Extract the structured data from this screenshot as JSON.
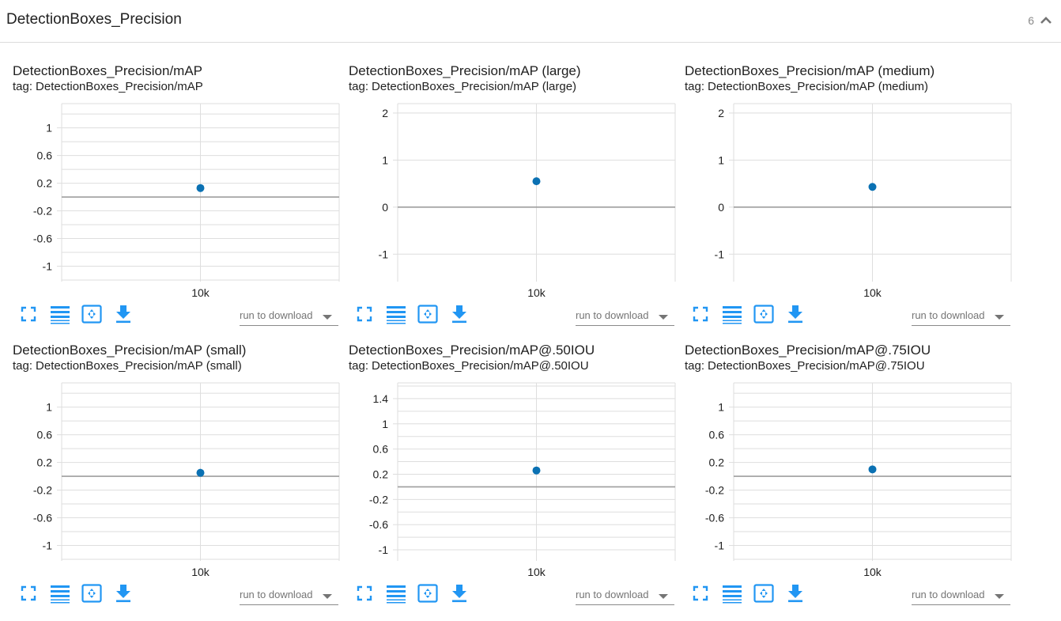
{
  "header": {
    "title": "DetectionBoxes_Precision",
    "count": "6"
  },
  "colors": {
    "accent": "#2196f3",
    "point": "#0b71b3",
    "grid": "#dedede",
    "zero_line": "#9e9e9e"
  },
  "tag_prefix": "tag:",
  "run_placeholder": "run to download",
  "cards": [
    {
      "title": "DetectionBoxes_Precision/mAP",
      "tag": "DetectionBoxes_Precision/mAP"
    },
    {
      "title": "DetectionBoxes_Precision/mAP (large)",
      "tag": "DetectionBoxes_Precision/mAP (large)"
    },
    {
      "title": "DetectionBoxes_Precision/mAP (medium)",
      "tag": "DetectionBoxes_Precision/mAP (medium)"
    },
    {
      "title": "DetectionBoxes_Precision/mAP (small)",
      "tag": "DetectionBoxes_Precision/mAP (small)"
    },
    {
      "title": "DetectionBoxes_Precision/mAP@.50IOU",
      "tag": "DetectionBoxes_Precision/mAP@.50IOU"
    },
    {
      "title": "DetectionBoxes_Precision/mAP@.75IOU",
      "tag": "DetectionBoxes_Precision/mAP@.75IOU"
    }
  ],
  "chart_data": [
    {
      "type": "scatter",
      "title": "DetectionBoxes_Precision/mAP",
      "x_tick_labels": [
        "10k"
      ],
      "ylim": [
        -1.2,
        1.35
      ],
      "y_ticks": [
        1,
        0.6,
        0.2,
        -0.2,
        -0.6,
        -1
      ],
      "y_minor_step": 0.2,
      "grid": true,
      "points": [
        {
          "x": "10k",
          "y": 0.13
        }
      ]
    },
    {
      "type": "scatter",
      "title": "DetectionBoxes_Precision/mAP (large)",
      "x_tick_labels": [
        "10k"
      ],
      "ylim": [
        -1.55,
        2.2
      ],
      "y_ticks": [
        2,
        1,
        0,
        -1
      ],
      "y_minor_step": 1,
      "grid": true,
      "points": [
        {
          "x": "10k",
          "y": 0.55
        }
      ]
    },
    {
      "type": "scatter",
      "title": "DetectionBoxes_Precision/mAP (medium)",
      "x_tick_labels": [
        "10k"
      ],
      "ylim": [
        -1.55,
        2.2
      ],
      "y_ticks": [
        2,
        1,
        0,
        -1
      ],
      "y_minor_step": 1,
      "grid": true,
      "points": [
        {
          "x": "10k",
          "y": 0.43
        }
      ]
    },
    {
      "type": "scatter",
      "title": "DetectionBoxes_Precision/mAP (small)",
      "x_tick_labels": [
        "10k"
      ],
      "ylim": [
        -1.2,
        1.35
      ],
      "y_ticks": [
        1,
        0.6,
        0.2,
        -0.2,
        -0.6,
        -1
      ],
      "y_minor_step": 0.2,
      "grid": true,
      "points": [
        {
          "x": "10k",
          "y": 0.05
        }
      ]
    },
    {
      "type": "scatter",
      "title": "DetectionBoxes_Precision/mAP@.50IOU",
      "x_tick_labels": [
        "10k"
      ],
      "ylim": [
        -1.15,
        1.65
      ],
      "y_ticks": [
        1.4,
        1,
        0.6,
        0.2,
        -0.2,
        -0.6,
        -1
      ],
      "y_minor_step": 0.2,
      "grid": true,
      "points": [
        {
          "x": "10k",
          "y": 0.26
        }
      ]
    },
    {
      "type": "scatter",
      "title": "DetectionBoxes_Precision/mAP@.75IOU",
      "x_tick_labels": [
        "10k"
      ],
      "ylim": [
        -1.2,
        1.35
      ],
      "y_ticks": [
        1,
        0.6,
        0.2,
        -0.2,
        -0.6,
        -1
      ],
      "y_minor_step": 0.2,
      "grid": true,
      "points": [
        {
          "x": "10k",
          "y": 0.1
        }
      ]
    }
  ]
}
